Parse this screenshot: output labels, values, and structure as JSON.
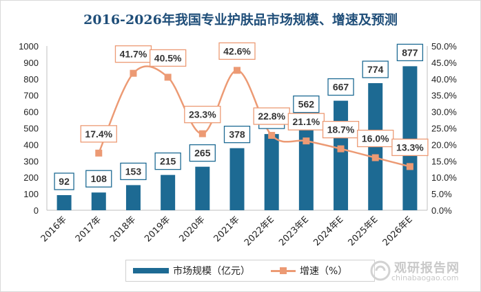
{
  "title": "2016-2026年我国专业护肤品市场规模、增速及预测",
  "legend": {
    "bar_label": "市场规模（亿元）",
    "line_label": "增速（%）"
  },
  "watermark": {
    "name": "观研报告网",
    "url": "chinabaogao.com"
  },
  "colors": {
    "bar": "#1d6a93",
    "line": "#ec9a74",
    "title": "#1f4e79",
    "label_border_bar": "#1d6a93",
    "label_border_line": "#ec9a74"
  },
  "chart_data": {
    "type": "bar",
    "title": "2016-2026年我国专业护肤品市场规模、增速及预测",
    "categories": [
      "2016年",
      "2017年",
      "2018年",
      "2019年",
      "2020年",
      "2021年",
      "2022年E",
      "2023年E",
      "2024年E",
      "2025年E",
      "2026年E"
    ],
    "series": [
      {
        "name": "市场规模（亿元）",
        "type": "bar",
        "axis": "left",
        "values": [
          92,
          108,
          153,
          215,
          265,
          378,
          464,
          562,
          667,
          774,
          877
        ]
      },
      {
        "name": "增速（%）",
        "type": "line",
        "axis": "right",
        "values": [
          null,
          17.4,
          41.7,
          40.5,
          23.3,
          42.6,
          22.8,
          21.1,
          18.7,
          16.0,
          13.3
        ]
      }
    ],
    "y_left": {
      "min": 0,
      "max": 1000,
      "ticks": [
        "0",
        "100",
        "200",
        "300",
        "400",
        "500",
        "600",
        "700",
        "800",
        "900",
        "1000"
      ]
    },
    "y_right": {
      "min": 0,
      "max": 50,
      "ticks": [
        "0.0%",
        "5.0%",
        "10.0%",
        "15.0%",
        "20.0%",
        "25.0%",
        "30.0%",
        "35.0%",
        "40.0%",
        "45.0%",
        "50.0%"
      ]
    },
    "bar_labels": [
      "92",
      "108",
      "153",
      "215",
      "265",
      "378",
      "464",
      "562",
      "667",
      "774",
      "877"
    ],
    "line_labels": [
      "",
      "17.4%",
      "41.7%",
      "40.5%",
      "23.3%",
      "42.6%",
      "22.8%",
      "21.1%",
      "18.7%",
      "16.0%",
      "13.3%"
    ],
    "legend_position": "bottom",
    "grid": false
  }
}
